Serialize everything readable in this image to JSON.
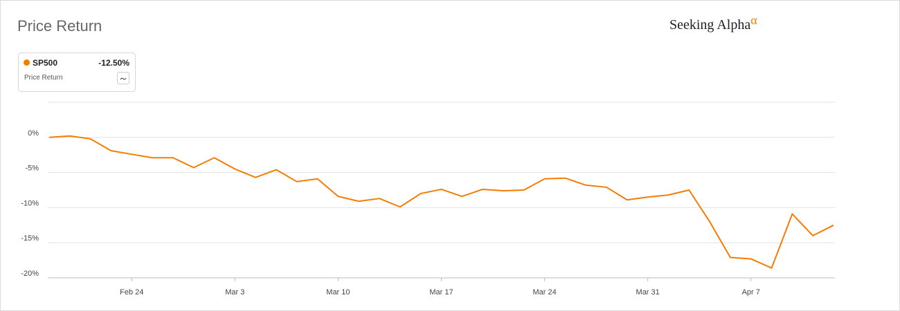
{
  "header": {
    "title": "Price Return",
    "logo": "Seeking Alpha",
    "logo_mark": "α"
  },
  "legend": {
    "name": "SP500",
    "value": "-12.50%",
    "subtitle": "Price Return"
  },
  "chart_data": {
    "type": "line",
    "categories": [
      null,
      null,
      null,
      null,
      "Feb 24",
      null,
      null,
      null,
      null,
      "Mar 3",
      null,
      null,
      null,
      null,
      "Mar 10",
      null,
      null,
      null,
      null,
      "Mar 17",
      null,
      null,
      null,
      null,
      "Mar 24",
      null,
      null,
      null,
      null,
      "Mar 31",
      null,
      null,
      null,
      null,
      "Apr 7",
      null,
      null,
      null,
      null
    ],
    "series": [
      {
        "name": "SP500",
        "color": "#f57c00",
        "values": [
          0,
          0.2,
          -0.2,
          -1.9,
          -2.4,
          -2.9,
          -2.9,
          -4.3,
          -2.9,
          -4.5,
          -5.7,
          -4.6,
          -6.3,
          -5.9,
          -8.4,
          -9.1,
          -8.7,
          -9.9,
          -8.0,
          -7.4,
          -8.4,
          -7.4,
          -7.6,
          -7.5,
          -5.9,
          -5.8,
          -6.8,
          -7.1,
          -8.9,
          -8.5,
          -8.2,
          -7.5,
          -12.0,
          -17.1,
          -17.3,
          -18.6,
          -10.9,
          -14.0,
          -12.5
        ]
      }
    ],
    "ylim": [
      -20,
      5
    ],
    "yticks": [
      {
        "value": -20,
        "label": "-20%"
      },
      {
        "value": -15,
        "label": "-15%"
      },
      {
        "value": -10,
        "label": "-10%"
      },
      {
        "value": -5,
        "label": "-5%"
      },
      {
        "value": 0,
        "label": "0%"
      }
    ],
    "grid": true
  }
}
